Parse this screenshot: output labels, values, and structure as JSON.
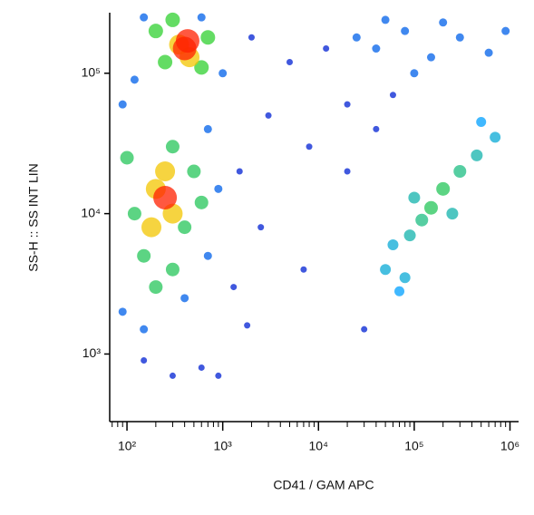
{
  "chart_data": {
    "type": "density-scatter",
    "x_label": "CD41 / GAM APC",
    "y_label": "SS-H :: SS INT LIN",
    "xscale": "log",
    "yscale": "log",
    "xlim": [
      66,
      1230000
    ],
    "ylim": [
      330,
      270000
    ],
    "xticks": [
      {
        "value": 100,
        "label": "10²"
      },
      {
        "value": 1000,
        "label": "10³"
      },
      {
        "value": 10000,
        "label": "10⁴"
      },
      {
        "value": 100000,
        "label": "10⁵"
      },
      {
        "value": 1000000,
        "label": "10⁶"
      }
    ],
    "xminorticks": [
      70,
      80,
      90,
      200,
      300,
      400,
      500,
      600,
      700,
      800,
      900,
      2000,
      3000,
      4000,
      5000,
      6000,
      7000,
      8000,
      9000,
      20000,
      30000,
      40000,
      50000,
      60000,
      70000,
      80000,
      90000,
      200000,
      300000,
      400000,
      500000,
      600000,
      700000,
      800000,
      900000
    ],
    "yticks": [
      {
        "value": 1000,
        "label": "10³"
      },
      {
        "value": 10000,
        "label": "10⁴"
      },
      {
        "value": 100000,
        "label": "10⁵"
      }
    ],
    "colormap": [
      "#0000c8",
      "#00a0ff",
      "#30d030",
      "#f0f000",
      "#ff2000"
    ],
    "points": {
      "x": [
        3000,
        8000,
        20000,
        1500,
        2500,
        5000,
        12000,
        2000,
        30000,
        1300,
        40000,
        60000,
        900,
        600,
        300,
        150,
        20000,
        7000,
        1800,
        40000,
        80000,
        150000,
        300000,
        600000,
        50000,
        200000,
        100000,
        900000,
        25000,
        90,
        150,
        400,
        700,
        900,
        700,
        90,
        1000,
        120,
        600,
        150,
        50000,
        60000,
        90000,
        120000,
        150000,
        200000,
        300000,
        450000,
        700000,
        80000,
        250000,
        100000,
        500000,
        70000,
        150,
        300,
        200,
        400,
        500,
        100,
        300,
        120,
        600,
        250,
        600,
        700,
        200,
        300,
        200,
        300,
        250,
        180,
        350,
        450,
        250,
        400,
        430
      ],
      "y": [
        50000,
        30000,
        60000,
        20000,
        8000,
        120000,
        150000,
        180000,
        1500,
        3000,
        40000,
        70000,
        700,
        800,
        700,
        900,
        20000,
        4000,
        1600,
        150000,
        200000,
        130000,
        180000,
        140000,
        240000,
        230000,
        100000,
        200000,
        180000,
        2000,
        1500,
        2500,
        5000,
        15000,
        40000,
        60000,
        100000,
        90000,
        250000,
        250000,
        4000,
        6000,
        7000,
        9000,
        11000,
        15000,
        20000,
        26000,
        35000,
        3500,
        10000,
        13000,
        45000,
        2800,
        5000,
        4000,
        3000,
        8000,
        20000,
        25000,
        30000,
        10000,
        12000,
        120000,
        110000,
        180000,
        200000,
        240000,
        15000,
        10000,
        20000,
        8000,
        160000,
        130000,
        13000,
        150000,
        170000
      ],
      "density": [
        0.05,
        0.05,
        0.05,
        0.05,
        0.05,
        0.05,
        0.05,
        0.05,
        0.05,
        0.05,
        0.05,
        0.05,
        0.05,
        0.05,
        0.05,
        0.05,
        0.05,
        0.05,
        0.05,
        0.15,
        0.15,
        0.15,
        0.15,
        0.15,
        0.15,
        0.15,
        0.15,
        0.15,
        0.15,
        0.15,
        0.15,
        0.15,
        0.15,
        0.15,
        0.15,
        0.15,
        0.15,
        0.15,
        0.15,
        0.15,
        0.3,
        0.3,
        0.35,
        0.4,
        0.45,
        0.45,
        0.4,
        0.35,
        0.3,
        0.3,
        0.35,
        0.35,
        0.25,
        0.25,
        0.45,
        0.45,
        0.45,
        0.45,
        0.45,
        0.45,
        0.45,
        0.45,
        0.45,
        0.5,
        0.5,
        0.5,
        0.5,
        0.5,
        0.8,
        0.8,
        0.8,
        0.8,
        0.8,
        0.8,
        1,
        1,
        1
      ]
    }
  }
}
